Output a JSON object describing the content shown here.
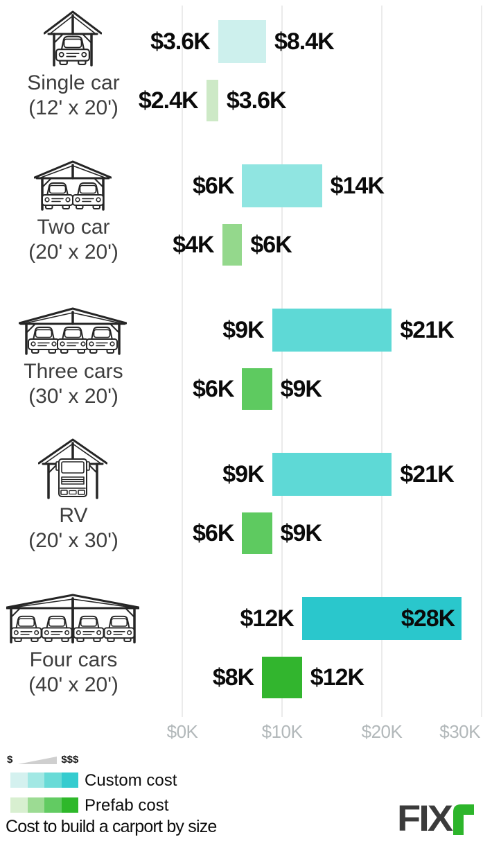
{
  "title": "Cost to build a carport by size",
  "logo": {
    "dark": "FIX",
    "green": "r"
  },
  "legend": {
    "scale_min": "$",
    "scale_max": "$$$",
    "items": [
      {
        "label": "Custom cost",
        "colors": [
          "#d4f1ef",
          "#a2e8e4",
          "#69dbd7",
          "#35cccf"
        ]
      },
      {
        "label": "Prefab cost",
        "colors": [
          "#d8efd0",
          "#9cdb93",
          "#62cb62",
          "#2eb82a"
        ]
      }
    ]
  },
  "chart_data": {
    "type": "bar",
    "subtype": "horizontal-range-bars",
    "title": "Cost to build a carport by size",
    "unit": "USD (thousands)",
    "xlim": [
      0,
      30
    ],
    "grid": true,
    "axis_ticks": [
      {
        "value": 0,
        "label": "$0K"
      },
      {
        "value": 10,
        "label": "$10K"
      },
      {
        "value": 20,
        "label": "$20K"
      },
      {
        "value": 30,
        "label": "$30K"
      }
    ],
    "series_names": [
      "Custom cost",
      "Prefab cost"
    ],
    "rows": [
      {
        "label": "Single car",
        "size": "(12' x 20')",
        "icon": "carport-single-car-icon",
        "custom": {
          "min": 3.6,
          "max": 8.4,
          "min_label": "$3.6K",
          "max_label": "$8.4K",
          "color": "#cdf0ed",
          "max_label_inside": false
        },
        "prefab": {
          "min": 2.4,
          "max": 3.6,
          "min_label": "$2.4K",
          "max_label": "$3.6K",
          "color": "#cde9c6",
          "max_label_inside": false
        }
      },
      {
        "label": "Two car",
        "size": "(20' x 20')",
        "icon": "carport-two-car-icon",
        "custom": {
          "min": 6,
          "max": 14,
          "min_label": "$6K",
          "max_label": "$14K",
          "color": "#90e5e1",
          "max_label_inside": false
        },
        "prefab": {
          "min": 4,
          "max": 6,
          "min_label": "$4K",
          "max_label": "$6K",
          "color": "#94d88c",
          "max_label_inside": false
        }
      },
      {
        "label": "Three cars",
        "size": "(30' x 20')",
        "icon": "carport-three-car-icon",
        "custom": {
          "min": 9,
          "max": 21,
          "min_label": "$9K",
          "max_label": "$21K",
          "color": "#5ed9d6",
          "max_label_inside": false
        },
        "prefab": {
          "min": 6,
          "max": 9,
          "min_label": "$6K",
          "max_label": "$9K",
          "color": "#5eca60",
          "max_label_inside": false
        }
      },
      {
        "label": "RV",
        "size": "(20' x 30')",
        "icon": "carport-rv-icon",
        "custom": {
          "min": 9,
          "max": 21,
          "min_label": "$9K",
          "max_label": "$21K",
          "color": "#5ed9d6",
          "max_label_inside": false
        },
        "prefab": {
          "min": 6,
          "max": 9,
          "min_label": "$6K",
          "max_label": "$9K",
          "color": "#5eca60",
          "max_label_inside": false
        }
      },
      {
        "label": "Four cars",
        "size": "(40' x 20')",
        "icon": "carport-four-car-icon",
        "custom": {
          "min": 12,
          "max": 28,
          "min_label": "$12K",
          "max_label": "$28K",
          "color": "#2ac7cc",
          "max_label_inside": true
        },
        "prefab": {
          "min": 8,
          "max": 12,
          "min_label": "$8K",
          "max_label": "$12K",
          "color": "#32b52e",
          "max_label_inside": false
        }
      }
    ]
  }
}
